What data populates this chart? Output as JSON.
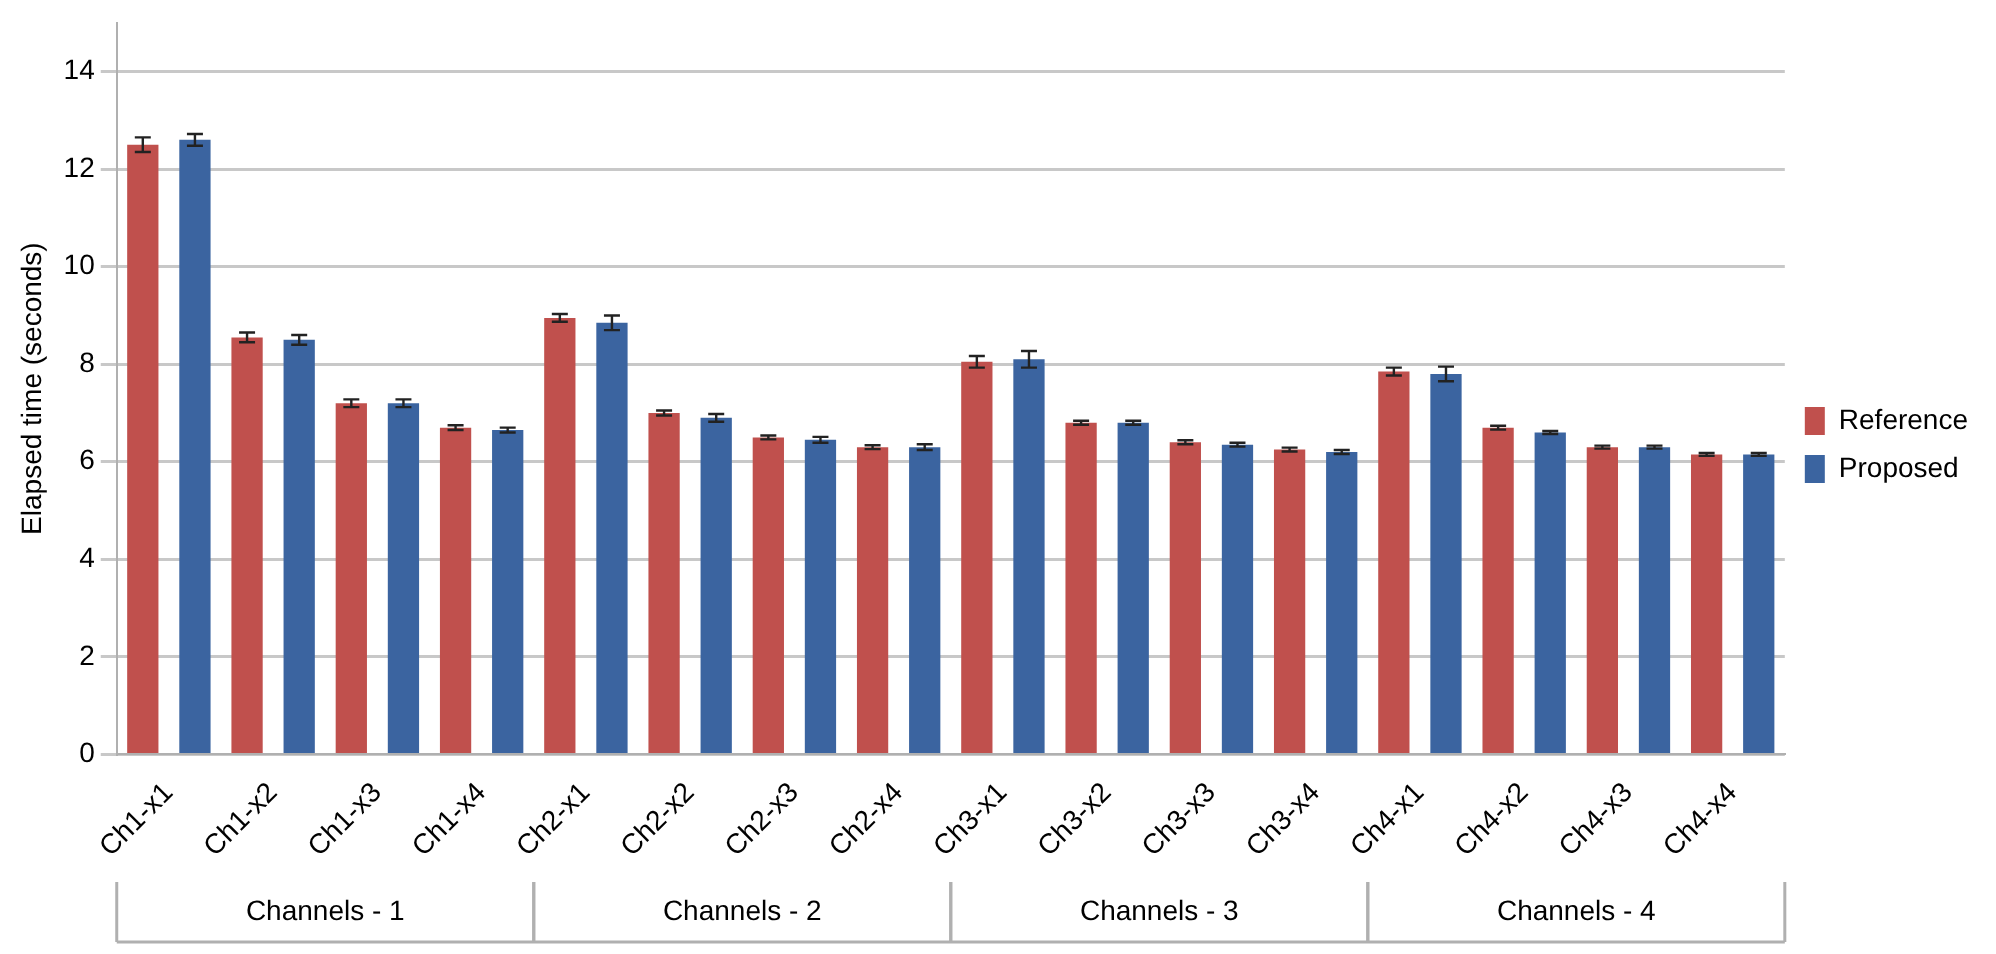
{
  "chart_data": {
    "type": "bar",
    "ylabel": "Elapsed time (seconds)",
    "categories": [
      "Ch1-x1",
      "Ch1-x2",
      "Ch1-x3",
      "Ch1-x4",
      "Ch2-x1",
      "Ch2-x2",
      "Ch2-x3",
      "Ch2-x4",
      "Ch3-x1",
      "Ch3-x2",
      "Ch3-x3",
      "Ch3-x4",
      "Ch4-x1",
      "Ch4-x2",
      "Ch4-x3",
      "Ch4-x4"
    ],
    "series": [
      {
        "name": "Reference",
        "color": "#c0504d",
        "values": [
          12.5,
          8.55,
          7.2,
          6.7,
          8.95,
          7.0,
          6.5,
          6.3,
          8.05,
          6.8,
          6.4,
          6.25,
          7.85,
          6.7,
          6.3,
          6.15
        ],
        "errors": [
          0.15,
          0.1,
          0.08,
          0.05,
          0.08,
          0.05,
          0.04,
          0.04,
          0.12,
          0.04,
          0.04,
          0.04,
          0.08,
          0.04,
          0.03,
          0.03
        ]
      },
      {
        "name": "Proposed",
        "color": "#3b64a0",
        "values": [
          12.6,
          8.5,
          7.2,
          6.65,
          8.85,
          6.9,
          6.45,
          6.3,
          8.1,
          6.8,
          6.35,
          6.2,
          7.8,
          6.6,
          6.3,
          6.15
        ],
        "errors": [
          0.12,
          0.1,
          0.08,
          0.05,
          0.15,
          0.08,
          0.06,
          0.06,
          0.17,
          0.04,
          0.04,
          0.04,
          0.15,
          0.03,
          0.03,
          0.03
        ]
      }
    ],
    "ylim": [
      0,
      15
    ],
    "yticks": [
      0,
      2,
      4,
      6,
      8,
      10,
      12,
      14
    ],
    "grid": "y",
    "legend": "right",
    "annotations": [
      "Channels - 1",
      "Channels - 2",
      "Channels - 3",
      "Channels - 4"
    ]
  }
}
